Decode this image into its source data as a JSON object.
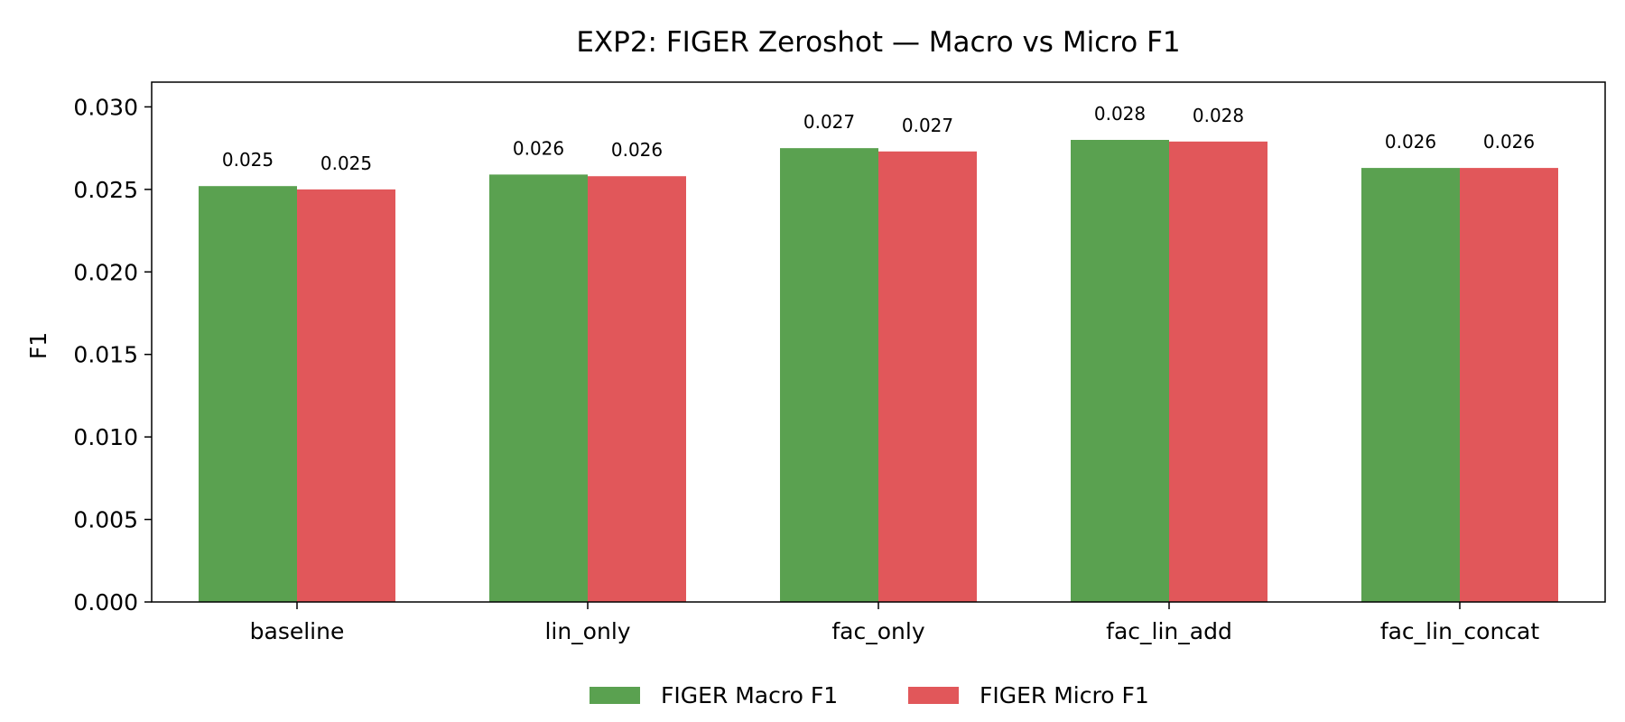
{
  "chart_data": {
    "type": "bar",
    "title": "EXP2: FIGER Zeroshot — Macro vs Micro F1",
    "xlabel": "",
    "ylabel": "F1",
    "categories": [
      "baseline",
      "lin_only",
      "fac_only",
      "fac_lin_add",
      "fac_lin_concat"
    ],
    "series": [
      {
        "name": "FIGER Macro F1",
        "color": "#5aa150",
        "values": [
          0.0252,
          0.0259,
          0.0275,
          0.028,
          0.0263
        ],
        "labels": [
          "0.025",
          "0.026",
          "0.027",
          "0.028",
          "0.026"
        ]
      },
      {
        "name": "FIGER Micro F1",
        "color": "#e1575a",
        "values": [
          0.025,
          0.0258,
          0.0273,
          0.0279,
          0.0263
        ],
        "labels": [
          "0.025",
          "0.026",
          "0.027",
          "0.028",
          "0.026"
        ]
      }
    ],
    "ylim": [
      0,
      0.0315
    ],
    "yticks": [
      0.0,
      0.005,
      0.01,
      0.015,
      0.02,
      0.025,
      0.03
    ],
    "ytick_labels": [
      "0.000",
      "0.005",
      "0.010",
      "0.015",
      "0.020",
      "0.025",
      "0.030"
    ],
    "grid": false,
    "legend_position": "bottom-center"
  }
}
